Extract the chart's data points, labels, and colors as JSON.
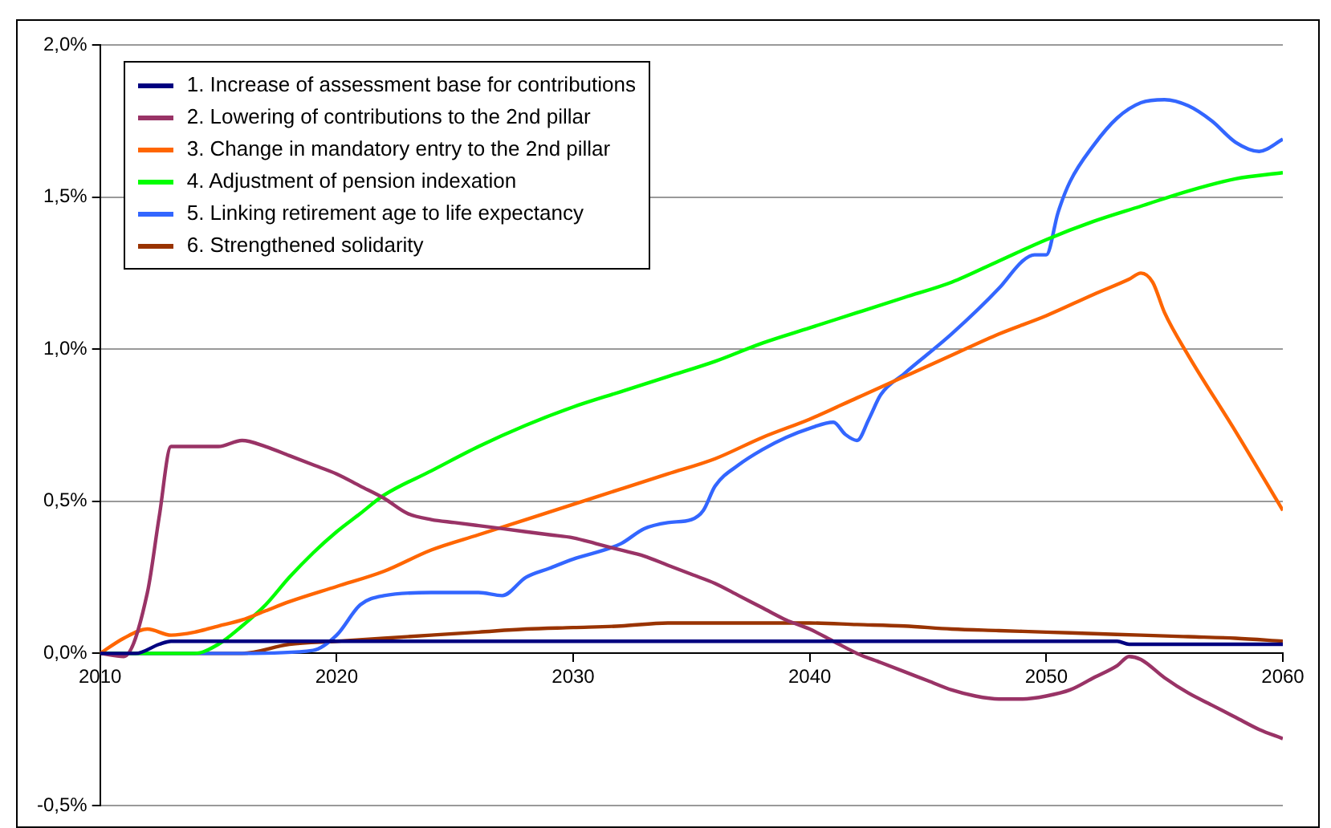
{
  "chart_data": {
    "type": "line",
    "grid": "y",
    "legend": "top left",
    "marker": "none",
    "line_style": "solid",
    "xlim": [
      2010,
      2060
    ],
    "xticks": [
      2010,
      2020,
      2030,
      2040,
      2050,
      2060
    ],
    "ylim": [
      -0.5,
      2.0
    ],
    "yticks": [
      {
        "value": -0.5,
        "label": "-0,5%"
      },
      {
        "value": 0,
        "label": "0,0%"
      },
      {
        "value": 0.5,
        "label": "0,5%"
      },
      {
        "value": 1.0,
        "label": "1,0%"
      },
      {
        "value": 1.5,
        "label": "1,5%"
      },
      {
        "value": 2.0,
        "label": "2,0%"
      }
    ],
    "series": [
      {
        "name": "1. Increase of assessment base for contributions",
        "color": "#000080",
        "x": [
          2010,
          2011.5,
          2012.5,
          2013,
          2020,
          2030,
          2040,
          2050,
          2053,
          2053.5,
          2060
        ],
        "values": [
          0,
          0,
          0.03,
          0.04,
          0.04,
          0.04,
          0.04,
          0.04,
          0.04,
          0.03,
          0.03
        ]
      },
      {
        "name": "2. Lowering of contributions to the 2nd pillar",
        "color": "#993366",
        "x": [
          2010,
          2011,
          2012,
          2012.5,
          2013,
          2014,
          2015,
          2016,
          2017,
          2018,
          2019,
          2020,
          2021,
          2022,
          2023,
          2024,
          2025,
          2026,
          2027,
          2028,
          2029,
          2030,
          2031,
          2032,
          2033,
          2034,
          2035,
          2036,
          2037,
          2038,
          2039,
          2040,
          2041,
          2042,
          2043,
          2044,
          2045,
          2046,
          2047,
          2048,
          2049,
          2050,
          2051,
          2052,
          2053,
          2053.5,
          2054,
          2055,
          2056,
          2057,
          2058,
          2059,
          2060
        ],
        "values": [
          0,
          -0.01,
          0.2,
          0.45,
          0.68,
          0.68,
          0.68,
          0.7,
          0.68,
          0.65,
          0.62,
          0.59,
          0.55,
          0.51,
          0.46,
          0.44,
          0.43,
          0.42,
          0.41,
          0.4,
          0.39,
          0.38,
          0.36,
          0.34,
          0.32,
          0.29,
          0.26,
          0.23,
          0.19,
          0.15,
          0.11,
          0.08,
          0.04,
          0,
          -0.03,
          -0.06,
          -0.09,
          -0.12,
          -0.14,
          -0.15,
          -0.15,
          -0.14,
          -0.12,
          -0.08,
          -0.04,
          -0.01,
          -0.02,
          -0.08,
          -0.13,
          -0.17,
          -0.21,
          -0.25,
          -0.28
        ]
      },
      {
        "name": "3. Change in mandatory entry to the 2nd pillar",
        "color": "#ff6600",
        "x": [
          2010,
          2011,
          2012,
          2013,
          2014,
          2015,
          2016,
          2017,
          2018,
          2020,
          2022,
          2024,
          2026,
          2028,
          2030,
          2032,
          2034,
          2036,
          2038,
          2040,
          2042,
          2044,
          2046,
          2048,
          2050,
          2052,
          2053.5,
          2054,
          2054.5,
          2055,
          2056,
          2058,
          2060
        ],
        "values": [
          0,
          0.05,
          0.08,
          0.06,
          0.07,
          0.09,
          0.11,
          0.14,
          0.17,
          0.22,
          0.27,
          0.34,
          0.39,
          0.44,
          0.49,
          0.54,
          0.59,
          0.64,
          0.71,
          0.77,
          0.84,
          0.91,
          0.98,
          1.05,
          1.11,
          1.18,
          1.23,
          1.25,
          1.22,
          1.12,
          0.98,
          0.73,
          0.47
        ]
      },
      {
        "name": "4. Adjustment of pension indexation",
        "color": "#00ff00",
        "x": [
          2010,
          2014,
          2015,
          2016,
          2017,
          2018,
          2019,
          2020,
          2021,
          2022,
          2024,
          2026,
          2028,
          2030,
          2032,
          2034,
          2036,
          2038,
          2040,
          2042,
          2044,
          2046,
          2048,
          2050,
          2052,
          2054,
          2056,
          2058,
          2060
        ],
        "values": [
          0,
          0,
          0.03,
          0.09,
          0.16,
          0.25,
          0.33,
          0.4,
          0.46,
          0.52,
          0.6,
          0.68,
          0.75,
          0.81,
          0.86,
          0.91,
          0.96,
          1.02,
          1.07,
          1.12,
          1.17,
          1.22,
          1.29,
          1.36,
          1.42,
          1.47,
          1.52,
          1.56,
          1.58
        ]
      },
      {
        "name": "5. Linking retirement age to life expectancy",
        "color": "#3366ff",
        "x": [
          2010,
          2016,
          2019,
          2020,
          2021,
          2022,
          2024,
          2026,
          2027,
          2028,
          2029,
          2030,
          2032,
          2033,
          2034,
          2035,
          2035.5,
          2036,
          2037,
          2038,
          2039,
          2040,
          2041,
          2041.5,
          2042,
          2042.5,
          2043,
          2044,
          2046,
          2048,
          2049,
          2049.5,
          2050,
          2050.5,
          2051,
          2052,
          2053,
          2054,
          2055,
          2056,
          2057,
          2058,
          2059,
          2060
        ],
        "values": [
          0,
          0,
          0.01,
          0.06,
          0.16,
          0.19,
          0.2,
          0.2,
          0.19,
          0.25,
          0.28,
          0.31,
          0.36,
          0.41,
          0.43,
          0.44,
          0.47,
          0.55,
          0.62,
          0.67,
          0.71,
          0.74,
          0.76,
          0.72,
          0.7,
          0.77,
          0.85,
          0.92,
          1.05,
          1.2,
          1.29,
          1.31,
          1.31,
          1.45,
          1.55,
          1.67,
          1.76,
          1.81,
          1.82,
          1.8,
          1.75,
          1.68,
          1.65,
          1.69
        ]
      },
      {
        "name": "6. Strengthened solidarity",
        "color": "#993300",
        "x": [
          2010,
          2016,
          2018,
          2020,
          2022,
          2024,
          2026,
          2028,
          2030,
          2032,
          2034,
          2040,
          2042,
          2044,
          2046,
          2048,
          2050,
          2052,
          2054,
          2056,
          2058,
          2060
        ],
        "values": [
          0,
          0,
          0.03,
          0.04,
          0.05,
          0.06,
          0.07,
          0.08,
          0.085,
          0.09,
          0.1,
          0.1,
          0.095,
          0.09,
          0.08,
          0.075,
          0.07,
          0.065,
          0.06,
          0.055,
          0.05,
          0.04
        ]
      }
    ]
  }
}
